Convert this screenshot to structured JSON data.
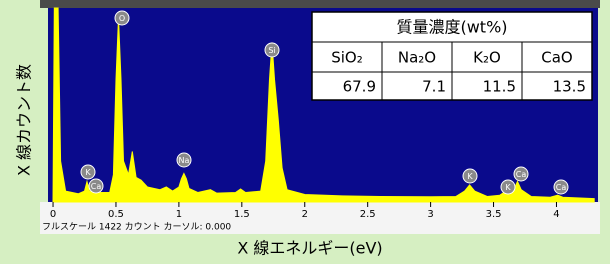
{
  "chart_data": {
    "type": "area",
    "x_label": "X 線エネルギー(eV)",
    "y_label": "X 線カウント数",
    "scale_note": "フルスケール 1422 カウント カーソル: 0.000",
    "color": "#ffff00",
    "background": "#0a0a8c",
    "xlim": [
      -0.04,
      4.33
    ],
    "ylim": [
      0,
      1422
    ],
    "xticks": [
      0,
      0.5,
      1,
      1.5,
      2,
      2.5,
      3,
      3.5,
      4
    ],
    "x": [
      0.0,
      0.01,
      0.04,
      0.06,
      0.1,
      0.2,
      0.25,
      0.27,
      0.29,
      0.32,
      0.34,
      0.36,
      0.45,
      0.48,
      0.5,
      0.52,
      0.54,
      0.56,
      0.6,
      0.63,
      0.66,
      0.7,
      0.75,
      0.85,
      0.9,
      0.95,
      1.0,
      1.02,
      1.04,
      1.06,
      1.08,
      1.15,
      1.25,
      1.3,
      1.45,
      1.49,
      1.53,
      1.65,
      1.69,
      1.72,
      1.74,
      1.76,
      1.79,
      1.82,
      1.86,
      2.0,
      2.3,
      2.6,
      3.0,
      3.2,
      3.27,
      3.31,
      3.35,
      3.45,
      3.55,
      3.59,
      3.63,
      3.66,
      3.69,
      3.72,
      3.8,
      3.95,
      4.01,
      4.05,
      4.3
    ],
    "values": [
      0,
      1422,
      1422,
      300,
      80,
      60,
      80,
      150,
      80,
      70,
      120,
      70,
      70,
      200,
      900,
      1350,
      900,
      300,
      200,
      370,
      180,
      160,
      110,
      90,
      110,
      80,
      110,
      170,
      210,
      170,
      100,
      70,
      90,
      65,
      70,
      95,
      70,
      80,
      300,
      900,
      1170,
      900,
      600,
      250,
      90,
      55,
      45,
      40,
      38,
      40,
      80,
      125,
      80,
      40,
      50,
      75,
      60,
      90,
      150,
      90,
      40,
      35,
      50,
      35,
      25
    ],
    "peak_labels": [
      "O",
      "Si",
      "K",
      "Ca",
      "Na",
      "K",
      "K",
      "Ca",
      "Ca"
    ],
    "table": {
      "title": "質量濃度(wt%)",
      "columns": [
        "SiO₂",
        "Na₂O",
        "K₂O",
        "CaO"
      ],
      "values": [
        67.9,
        7.1,
        11.5,
        13.5
      ]
    }
  }
}
